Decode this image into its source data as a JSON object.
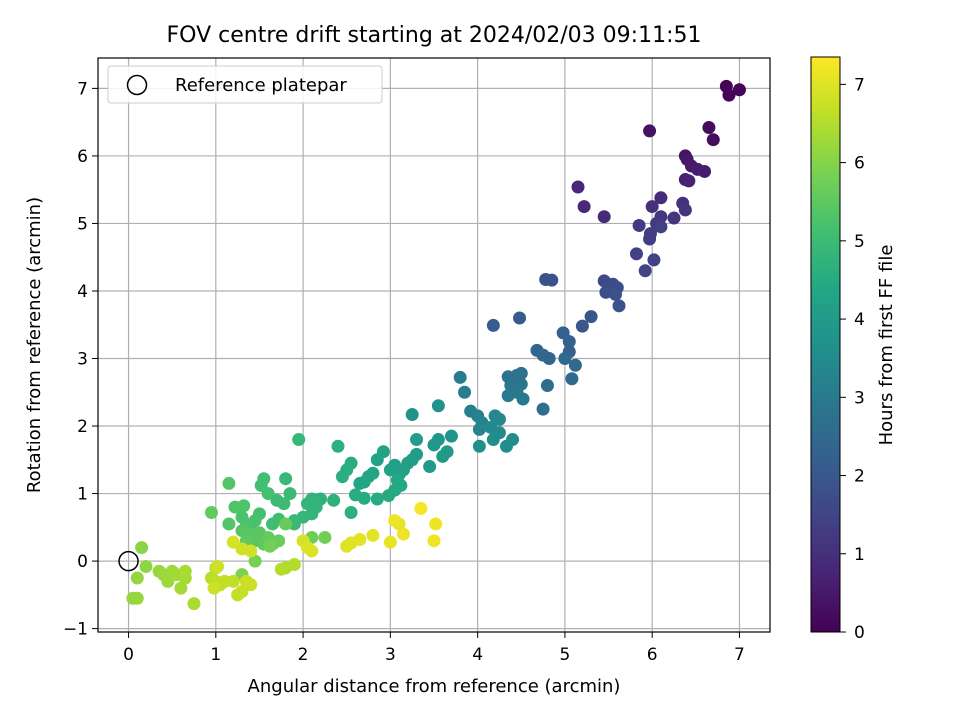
{
  "chart_data": {
    "type": "scatter",
    "title": "FOV centre drift starting at 2024/02/03 09:11:51",
    "xlabel": "Angular distance from reference (arcmin)",
    "ylabel": "Rotation from reference (arcmin)",
    "xlim": [
      -0.35,
      7.35
    ],
    "ylim": [
      -1.05,
      7.45
    ],
    "xticks": [
      0,
      1,
      2,
      3,
      4,
      5,
      6,
      7
    ],
    "yticks": [
      -1,
      0,
      1,
      2,
      3,
      4,
      5,
      6,
      7
    ],
    "grid": true,
    "legend": {
      "position": "top-left",
      "entries": [
        "Reference platepar"
      ]
    },
    "reference_point": {
      "x": 0,
      "y": 0,
      "label": "Reference platepar"
    },
    "colorbar": {
      "label": "Hours from first FF file",
      "range": [
        0,
        7.35
      ],
      "ticks": [
        0,
        1,
        2,
        3,
        4,
        5,
        6,
        7
      ],
      "colormap": "viridis"
    },
    "points": [
      [
        6.85,
        7.03,
        0.05
      ],
      [
        6.88,
        6.9,
        0.08
      ],
      [
        7.0,
        6.98,
        0.1
      ],
      [
        6.65,
        6.42,
        0.2
      ],
      [
        6.7,
        6.24,
        0.25
      ],
      [
        5.97,
        6.37,
        0.35
      ],
      [
        6.38,
        6.0,
        0.4
      ],
      [
        6.4,
        5.95,
        0.45
      ],
      [
        6.45,
        5.85,
        0.5
      ],
      [
        6.52,
        5.8,
        0.55
      ],
      [
        6.6,
        5.77,
        0.6
      ],
      [
        6.38,
        5.65,
        0.65
      ],
      [
        6.42,
        5.63,
        0.7
      ],
      [
        5.15,
        5.54,
        0.8
      ],
      [
        5.22,
        5.25,
        0.85
      ],
      [
        5.45,
        5.1,
        0.9
      ],
      [
        6.1,
        5.38,
        0.95
      ],
      [
        6.0,
        5.25,
        1.0
      ],
      [
        6.35,
        5.3,
        1.05
      ],
      [
        6.38,
        5.2,
        1.1
      ],
      [
        6.25,
        5.08,
        1.1
      ],
      [
        6.1,
        5.1,
        1.15
      ],
      [
        6.05,
        5.0,
        1.2
      ],
      [
        5.85,
        4.97,
        1.25
      ],
      [
        5.98,
        4.85,
        1.3
      ],
      [
        5.97,
        4.77,
        1.35
      ],
      [
        6.1,
        4.95,
        1.35
      ],
      [
        5.82,
        4.55,
        1.4
      ],
      [
        6.02,
        4.46,
        1.45
      ],
      [
        5.92,
        4.3,
        1.5
      ],
      [
        5.45,
        4.15,
        1.6
      ],
      [
        5.55,
        4.1,
        1.65
      ],
      [
        5.5,
        4.05,
        1.7
      ],
      [
        5.6,
        4.05,
        1.75
      ],
      [
        5.47,
        3.98,
        1.75
      ],
      [
        5.58,
        3.95,
        1.8
      ],
      [
        5.62,
        3.78,
        1.85
      ],
      [
        4.78,
        4.17,
        1.85
      ],
      [
        4.85,
        4.16,
        1.9
      ],
      [
        5.3,
        3.62,
        1.95
      ],
      [
        5.2,
        3.48,
        2.0
      ],
      [
        4.48,
        3.6,
        2.1
      ],
      [
        4.18,
        3.49,
        2.15
      ],
      [
        4.98,
        3.38,
        2.2
      ],
      [
        5.05,
        3.25,
        2.25
      ],
      [
        5.05,
        3.1,
        2.3
      ],
      [
        4.68,
        3.12,
        2.35
      ],
      [
        4.75,
        3.05,
        2.4
      ],
      [
        4.82,
        3.0,
        2.45
      ],
      [
        5.0,
        3.0,
        2.5
      ],
      [
        5.12,
        2.9,
        2.5
      ],
      [
        5.08,
        2.7,
        2.55
      ],
      [
        4.8,
        2.6,
        2.6
      ],
      [
        4.75,
        2.25,
        2.65
      ],
      [
        4.5,
        2.78,
        2.7
      ],
      [
        4.45,
        2.75,
        2.75
      ],
      [
        4.35,
        2.73,
        2.8
      ],
      [
        4.5,
        2.62,
        2.85
      ],
      [
        4.38,
        2.6,
        2.85
      ],
      [
        4.45,
        2.5,
        2.9
      ],
      [
        4.52,
        2.4,
        2.95
      ],
      [
        4.35,
        2.45,
        3.0
      ],
      [
        3.8,
        2.72,
        3.05
      ],
      [
        3.85,
        2.5,
        3.1
      ],
      [
        3.92,
        2.22,
        3.15
      ],
      [
        4.0,
        2.15,
        3.2
      ],
      [
        4.02,
        1.95,
        3.25
      ],
      [
        4.05,
        2.05,
        3.3
      ],
      [
        4.2,
        2.15,
        3.35
      ],
      [
        4.25,
        2.1,
        3.4
      ],
      [
        4.15,
        1.98,
        3.45
      ],
      [
        4.25,
        1.9,
        3.5
      ],
      [
        4.4,
        1.8,
        3.55
      ],
      [
        4.33,
        1.7,
        3.6
      ],
      [
        4.18,
        1.8,
        3.6
      ],
      [
        4.02,
        1.7,
        3.65
      ],
      [
        3.55,
        2.3,
        3.7
      ],
      [
        3.25,
        2.17,
        3.75
      ],
      [
        3.7,
        1.85,
        3.8
      ],
      [
        3.55,
        1.8,
        3.85
      ],
      [
        3.5,
        1.72,
        3.9
      ],
      [
        3.65,
        1.62,
        3.95
      ],
      [
        3.6,
        1.55,
        4.0
      ],
      [
        3.45,
        1.4,
        4.0
      ],
      [
        3.3,
        1.58,
        4.05
      ],
      [
        3.3,
        1.8,
        4.05
      ],
      [
        3.2,
        1.45,
        4.1
      ],
      [
        3.25,
        1.5,
        4.1
      ],
      [
        3.05,
        1.42,
        4.15
      ],
      [
        3.15,
        1.35,
        4.15
      ],
      [
        3.1,
        1.28,
        4.2
      ],
      [
        3.0,
        1.35,
        4.2
      ],
      [
        2.92,
        1.62,
        4.25
      ],
      [
        2.85,
        1.5,
        4.25
      ],
      [
        2.8,
        1.3,
        4.3
      ],
      [
        2.75,
        1.25,
        4.3
      ],
      [
        2.7,
        1.17,
        4.35
      ],
      [
        2.65,
        1.15,
        4.35
      ],
      [
        3.08,
        1.2,
        4.4
      ],
      [
        3.12,
        1.12,
        4.4
      ],
      [
        3.05,
        1.05,
        4.45
      ],
      [
        2.98,
        0.97,
        4.45
      ],
      [
        2.85,
        0.92,
        4.5
      ],
      [
        2.7,
        0.93,
        4.5
      ],
      [
        2.6,
        0.98,
        4.55
      ],
      [
        2.55,
        1.45,
        4.55
      ],
      [
        2.5,
        1.35,
        4.6
      ],
      [
        2.45,
        1.25,
        4.6
      ],
      [
        2.4,
        1.7,
        4.65
      ],
      [
        2.55,
        0.72,
        4.65
      ],
      [
        2.35,
        0.9,
        4.7
      ],
      [
        2.2,
        0.92,
        4.7
      ],
      [
        2.1,
        0.92,
        4.75
      ],
      [
        2.15,
        0.8,
        4.75
      ],
      [
        2.05,
        0.85,
        4.8
      ],
      [
        2.1,
        0.7,
        4.8
      ],
      [
        2.0,
        0.65,
        4.85
      ],
      [
        1.95,
        1.8,
        4.85
      ],
      [
        1.9,
        0.6,
        4.9
      ],
      [
        1.8,
        1.22,
        4.9
      ],
      [
        1.85,
        1.0,
        4.95
      ],
      [
        1.9,
        0.55,
        4.95
      ],
      [
        1.7,
        0.9,
        5.0
      ],
      [
        1.78,
        0.85,
        5.0
      ],
      [
        1.72,
        0.62,
        5.05
      ],
      [
        1.65,
        0.55,
        5.05
      ],
      [
        1.55,
        1.22,
        5.1
      ],
      [
        1.52,
        1.12,
        5.1
      ],
      [
        1.6,
        1.0,
        5.15
      ],
      [
        1.5,
        0.7,
        5.15
      ],
      [
        1.45,
        0.6,
        5.2
      ],
      [
        1.4,
        0.5,
        5.2
      ],
      [
        1.35,
        0.55,
        5.25
      ],
      [
        1.3,
        0.65,
        5.25
      ],
      [
        1.32,
        0.82,
        5.3
      ],
      [
        1.22,
        0.8,
        5.3
      ],
      [
        1.15,
        1.15,
        5.35
      ],
      [
        1.15,
        0.55,
        5.35
      ],
      [
        1.3,
        0.45,
        5.4
      ],
      [
        1.4,
        0.4,
        5.4
      ],
      [
        1.5,
        0.42,
        5.45
      ],
      [
        1.45,
        0.3,
        5.45
      ],
      [
        1.35,
        0.3,
        5.5
      ],
      [
        1.55,
        0.25,
        5.5
      ],
      [
        1.65,
        0.25,
        5.55
      ],
      [
        0.95,
        0.72,
        5.55
      ],
      [
        1.6,
        0.35,
        5.6
      ],
      [
        1.72,
        0.3,
        5.65
      ],
      [
        1.8,
        0.55,
        5.65
      ],
      [
        2.1,
        0.35,
        5.7
      ],
      [
        2.25,
        0.35,
        5.75
      ],
      [
        1.62,
        0.22,
        5.8
      ],
      [
        1.45,
        0.0,
        5.85
      ],
      [
        1.3,
        -0.2,
        5.9
      ],
      [
        0.15,
        0.2,
        6.05
      ],
      [
        0.2,
        -0.08,
        6.1
      ],
      [
        0.1,
        -0.25,
        6.15
      ],
      [
        0.05,
        -0.55,
        6.15
      ],
      [
        0.1,
        -0.55,
        6.2
      ],
      [
        0.35,
        -0.15,
        6.2
      ],
      [
        0.45,
        -0.3,
        6.25
      ],
      [
        0.4,
        -0.2,
        6.25
      ],
      [
        0.5,
        -0.15,
        6.3
      ],
      [
        0.55,
        -0.2,
        6.3
      ],
      [
        0.6,
        -0.4,
        6.35
      ],
      [
        0.65,
        -0.25,
        6.35
      ],
      [
        0.65,
        -0.15,
        6.4
      ],
      [
        0.75,
        -0.63,
        6.4
      ],
      [
        1.8,
        -0.1,
        6.45
      ],
      [
        1.75,
        -0.12,
        6.5
      ],
      [
        1.9,
        -0.05,
        6.5
      ],
      [
        0.95,
        -0.25,
        6.55
      ],
      [
        1.0,
        -0.1,
        6.55
      ],
      [
        1.0,
        -0.3,
        6.6
      ],
      [
        1.05,
        -0.35,
        6.6
      ],
      [
        1.1,
        -0.3,
        6.65
      ],
      [
        1.2,
        -0.3,
        6.65
      ],
      [
        1.25,
        -0.5,
        6.7
      ],
      [
        1.3,
        -0.45,
        6.7
      ],
      [
        1.35,
        -0.3,
        6.75
      ],
      [
        1.4,
        -0.35,
        6.75
      ],
      [
        0.98,
        -0.4,
        6.8
      ],
      [
        1.02,
        -0.08,
        6.8
      ],
      [
        1.4,
        0.15,
        6.85
      ],
      [
        1.3,
        0.18,
        6.85
      ],
      [
        1.2,
        0.28,
        6.9
      ],
      [
        2.0,
        0.3,
        6.9
      ],
      [
        2.05,
        0.2,
        6.95
      ],
      [
        2.1,
        0.15,
        6.95
      ],
      [
        2.5,
        0.22,
        7.0
      ],
      [
        2.55,
        0.27,
        7.0
      ],
      [
        2.65,
        0.32,
        7.05
      ],
      [
        2.8,
        0.38,
        7.05
      ],
      [
        3.0,
        0.28,
        7.1
      ],
      [
        3.1,
        0.55,
        7.1
      ],
      [
        3.05,
        0.6,
        7.15
      ],
      [
        3.15,
        0.4,
        7.15
      ],
      [
        3.5,
        0.3,
        7.2
      ],
      [
        3.52,
        0.55,
        7.2
      ],
      [
        3.35,
        0.78,
        7.25
      ]
    ]
  }
}
